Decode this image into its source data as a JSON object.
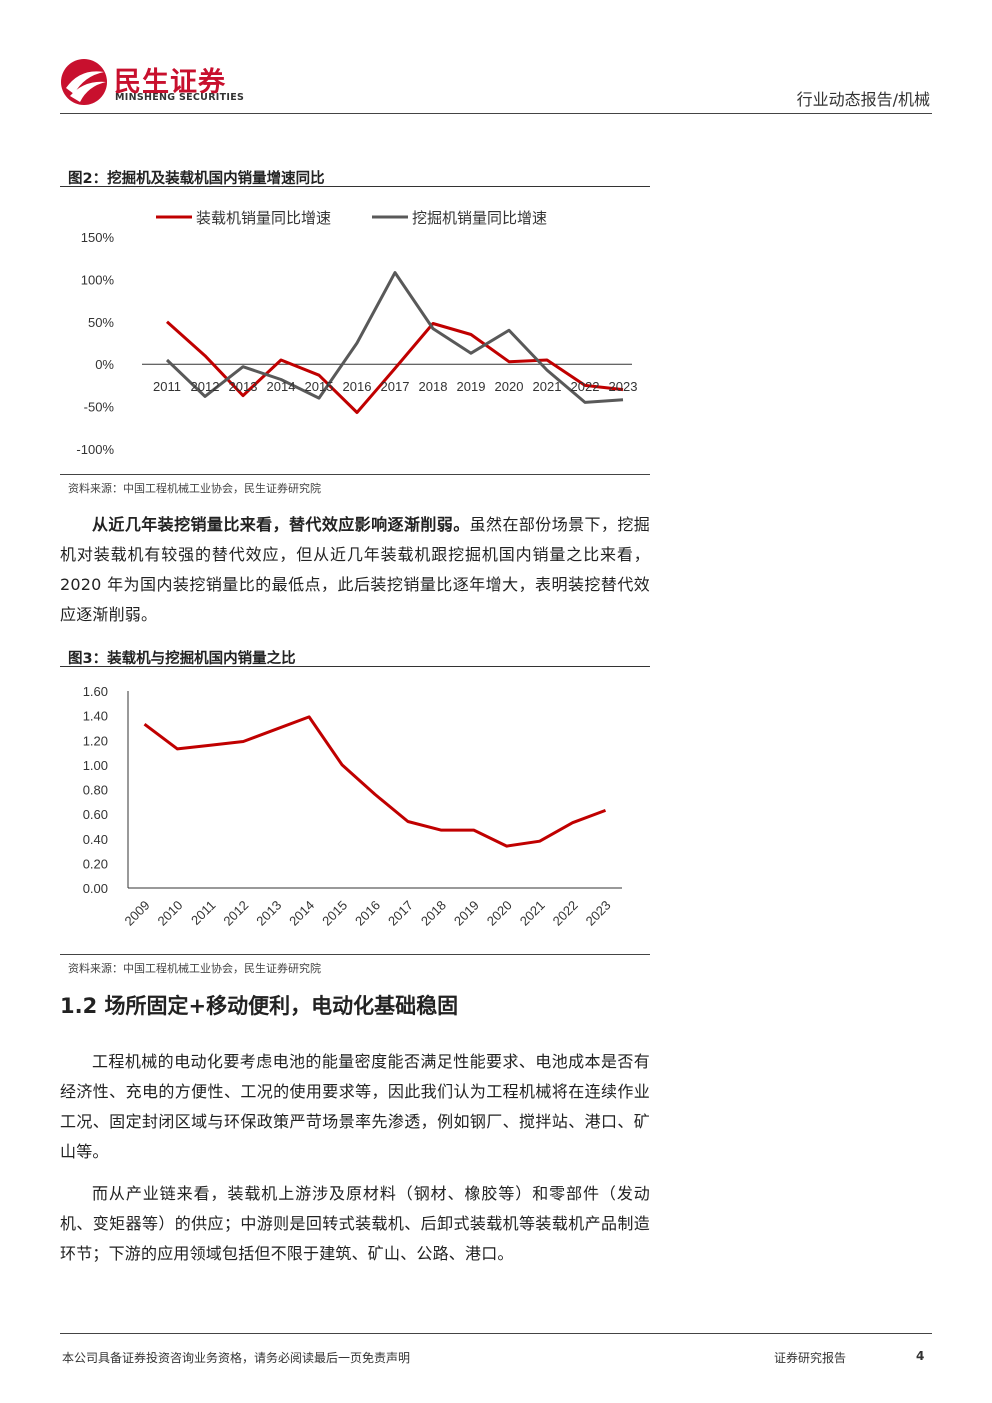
{
  "header": {
    "logo_cn": "民生证券",
    "logo_en": "MINSHENG SECURITIES",
    "category": "行业动态报告/机械"
  },
  "figure2": {
    "title": "图2：挖掘机及装载机国内销量增速同比",
    "source": "资料来源：中国工程机械工业协会，民生证券研究院",
    "colors": {
      "loader": "#c00000",
      "excavator": "#595959"
    }
  },
  "paragraph1": {
    "bold": "从近几年装挖销量比来看，替代效应影响逐渐削弱。",
    "text": "虽然在部份场景下，挖掘机对装载机有较强的替代效应，但从近几年装载机跟挖掘机国内销量之比来看，2020 年为国内装挖销量比的最低点，此后装挖销量比逐年增大，表明装挖替代效应逐渐削弱。"
  },
  "figure3": {
    "title": "图3：装载机与挖掘机国内销量之比",
    "source": "资料来源：中国工程机械工业协会，民生证券研究院",
    "color": "#c00000"
  },
  "section": {
    "title": "1.2 场所固定+移动便利，电动化基础稳固"
  },
  "paragraph2": "工程机械的电动化要考虑电池的能量密度能否满足性能要求、电池成本是否有经济性、充电的方便性、工况的使用要求等，因此我们认为工程机械将在连续作业工况、固定封闭区域与环保政策严苛场景率先渗透，例如钢厂、搅拌站、港口、矿山等。",
  "paragraph3": "而从产业链来看，装载机上游涉及原材料（钢材、橡胶等）和零部件（发动机、变矩器等）的供应；中游则是回转式装载机、后卸式装载机等装载机产品制造环节；下游的应用领域包括但不限于建筑、矿山、公路、港口。",
  "footer": {
    "disclaimer": "本公司具备证券投资咨询业务资格，请务必阅读最后一页免责声明",
    "report_type": "证券研究报告",
    "page": "4"
  },
  "chart_data": [
    {
      "type": "line",
      "x": [
        "2011",
        "2012",
        "2013",
        "2014",
        "2015",
        "2016",
        "2017",
        "2018",
        "2019",
        "2020",
        "2021",
        "2022",
        "2023"
      ],
      "series": [
        {
          "name": "装载机销量同比增速",
          "values": [
            50,
            10,
            -37,
            5,
            -13,
            -57,
            -5,
            48,
            35,
            3,
            5,
            -25,
            -30
          ]
        },
        {
          "name": "挖掘机销量同比增速",
          "values": [
            5,
            -38,
            -3,
            -18,
            -40,
            25,
            108,
            42,
            13,
            40,
            -7,
            -45,
            -42
          ]
        }
      ],
      "yticks": [
        "150%",
        "100%",
        "50%",
        "0%",
        "-50%",
        "-100%"
      ],
      "ylim": [
        -100,
        150
      ],
      "legend": "top"
    },
    {
      "type": "line",
      "x": [
        "2009",
        "2010",
        "2011",
        "2012",
        "2013",
        "2014",
        "2015",
        "2016",
        "2017",
        "2018",
        "2019",
        "2020",
        "2021",
        "2022",
        "2023"
      ],
      "values": [
        1.33,
        1.13,
        1.16,
        1.19,
        1.29,
        1.39,
        1.0,
        0.76,
        0.54,
        0.47,
        0.47,
        0.34,
        0.38,
        0.53,
        0.63
      ],
      "yticks": [
        "1.60",
        "1.40",
        "1.20",
        "1.00",
        "0.80",
        "0.60",
        "0.40",
        "0.20",
        "0.00"
      ],
      "ylim": [
        0,
        1.6
      ]
    }
  ]
}
